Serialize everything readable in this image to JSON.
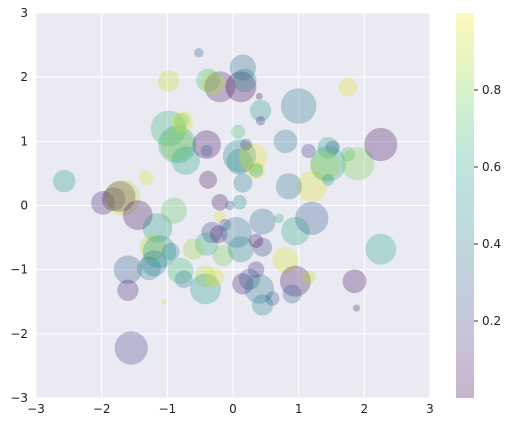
{
  "chart_data": {
    "type": "scatter",
    "title": "",
    "xlabel": "",
    "ylabel": "",
    "xlim": [
      -3,
      3
    ],
    "ylim": [
      -3,
      3
    ],
    "xticks": [
      "−3",
      "−2",
      "−1",
      "0",
      "1",
      "2",
      "3"
    ],
    "yticks": [
      "−3",
      "−2",
      "−1",
      "0",
      "1",
      "2",
      "3"
    ],
    "grid": true,
    "background": "#EAEAF2",
    "alpha": 0.3,
    "colormap": "viridis",
    "colorbar": {
      "range": [
        0,
        1
      ],
      "ticks": [
        "0.2",
        "0.4",
        "0.6",
        "0.8"
      ],
      "tick_values": [
        0.2,
        0.4,
        0.6,
        0.8
      ],
      "stops": [
        "#440154",
        "#482878",
        "#3e4a89",
        "#31688e",
        "#26828e",
        "#1f9e89",
        "#35b779",
        "#6ece58",
        "#b5de2b",
        "#fde725"
      ]
    },
    "points": [
      {
        "x": -2.57,
        "y": 0.38,
        "size": 0.19,
        "c": 0.55
      },
      {
        "x": -1.98,
        "y": 0.04,
        "size": 0.2,
        "c": 0.1
      },
      {
        "x": -1.82,
        "y": 0.1,
        "size": 0.2,
        "c": 0.1
      },
      {
        "x": -1.72,
        "y": 0.14,
        "size": 0.26,
        "c": 0.02
      },
      {
        "x": -1.68,
        "y": 0.12,
        "size": 0.3,
        "c": 0.9
      },
      {
        "x": -1.45,
        "y": -0.15,
        "size": 0.25,
        "c": 0.05
      },
      {
        "x": -1.32,
        "y": 0.43,
        "size": 0.12,
        "c": 0.95
      },
      {
        "x": -1.6,
        "y": -1.0,
        "size": 0.24,
        "c": 0.3
      },
      {
        "x": -1.6,
        "y": -1.32,
        "size": 0.18,
        "c": 0.1
      },
      {
        "x": -1.55,
        "y": -2.22,
        "size": 0.28,
        "c": 0.2
      },
      {
        "x": -1.15,
        "y": -0.35,
        "size": 0.25,
        "c": 0.55
      },
      {
        "x": -1.22,
        "y": -0.65,
        "size": 0.22,
        "c": 0.9
      },
      {
        "x": -1.12,
        "y": -0.72,
        "size": 0.28,
        "c": 0.55
      },
      {
        "x": -1.2,
        "y": -0.9,
        "size": 0.22,
        "c": 0.4
      },
      {
        "x": -1.28,
        "y": -0.98,
        "size": 0.2,
        "c": 0.45
      },
      {
        "x": -0.95,
        "y": -0.72,
        "size": 0.15,
        "c": 0.45
      },
      {
        "x": -0.8,
        "y": -1.02,
        "size": 0.22,
        "c": 0.7
      },
      {
        "x": -0.75,
        "y": -1.15,
        "size": 0.15,
        "c": 0.45
      },
      {
        "x": -0.9,
        "y": -0.08,
        "size": 0.22,
        "c": 0.75
      },
      {
        "x": -1.05,
        "y": -1.5,
        "size": 0.05,
        "c": 0.95
      },
      {
        "x": -0.98,
        "y": 1.2,
        "size": 0.3,
        "c": 0.65
      },
      {
        "x": -0.85,
        "y": 0.95,
        "size": 0.28,
        "c": 0.9
      },
      {
        "x": -0.85,
        "y": 0.95,
        "size": 0.32,
        "c": 0.6
      },
      {
        "x": -0.72,
        "y": 0.7,
        "size": 0.24,
        "c": 0.6
      },
      {
        "x": -0.77,
        "y": 1.3,
        "size": 0.18,
        "c": 0.95
      },
      {
        "x": -0.78,
        "y": 1.32,
        "size": 0.13,
        "c": 0.8
      },
      {
        "x": -0.98,
        "y": 1.94,
        "size": 0.18,
        "c": 0.9
      },
      {
        "x": -0.52,
        "y": 2.38,
        "size": 0.08,
        "c": 0.3
      },
      {
        "x": -0.38,
        "y": 1.95,
        "size": 0.2,
        "c": 0.7
      },
      {
        "x": -0.2,
        "y": 1.85,
        "size": 0.26,
        "c": 0.1
      },
      {
        "x": -0.3,
        "y": 1.9,
        "size": 0.2,
        "c": 0.9
      },
      {
        "x": -0.4,
        "y": 0.95,
        "size": 0.24,
        "c": 0.05
      },
      {
        "x": -0.4,
        "y": 0.85,
        "size": 0.1,
        "c": 0.3
      },
      {
        "x": -0.38,
        "y": 0.4,
        "size": 0.15,
        "c": 0.05
      },
      {
        "x": -0.32,
        "y": -0.42,
        "size": 0.18,
        "c": 0.2
      },
      {
        "x": -0.4,
        "y": -0.6,
        "size": 0.2,
        "c": 0.6
      },
      {
        "x": -0.6,
        "y": -0.68,
        "size": 0.18,
        "c": 0.85
      },
      {
        "x": -0.42,
        "y": -1.1,
        "size": 0.18,
        "c": 0.9
      },
      {
        "x": -0.42,
        "y": -1.3,
        "size": 0.26,
        "c": 0.55
      },
      {
        "x": -0.28,
        "y": -1.12,
        "size": 0.16,
        "c": 0.95
      },
      {
        "x": -0.2,
        "y": 0.05,
        "size": 0.14,
        "c": 0.05
      },
      {
        "x": -0.2,
        "y": -0.18,
        "size": 0.1,
        "c": 0.95
      },
      {
        "x": -0.12,
        "y": -0.3,
        "size": 0.1,
        "c": 0.25
      },
      {
        "x": -0.05,
        "y": 0.0,
        "size": 0.08,
        "c": 0.3
      },
      {
        "x": -0.22,
        "y": -0.45,
        "size": 0.15,
        "c": 0.1
      },
      {
        "x": -0.15,
        "y": -0.78,
        "size": 0.18,
        "c": 0.8
      },
      {
        "x": 0.05,
        "y": -0.42,
        "size": 0.26,
        "c": 0.4
      },
      {
        "x": 0.12,
        "y": -0.68,
        "size": 0.22,
        "c": 0.45
      },
      {
        "x": 0.1,
        "y": 0.05,
        "size": 0.12,
        "c": 0.5
      },
      {
        "x": 0.15,
        "y": 0.35,
        "size": 0.16,
        "c": 0.45
      },
      {
        "x": 0.08,
        "y": 1.15,
        "size": 0.12,
        "c": 0.7
      },
      {
        "x": 0.1,
        "y": 0.68,
        "size": 0.22,
        "c": 0.5
      },
      {
        "x": 0.1,
        "y": 0.77,
        "size": 0.28,
        "c": 0.45
      },
      {
        "x": 0.3,
        "y": 0.75,
        "size": 0.24,
        "c": 0.95
      },
      {
        "x": 0.35,
        "y": 0.55,
        "size": 0.15,
        "c": 0.95
      },
      {
        "x": 0.35,
        "y": 0.55,
        "size": 0.12,
        "c": 0.6
      },
      {
        "x": 0.2,
        "y": 0.95,
        "size": 0.1,
        "c": 0.2
      },
      {
        "x": 0.12,
        "y": 1.85,
        "size": 0.26,
        "c": 0.0
      },
      {
        "x": 0.18,
        "y": 1.95,
        "size": 0.2,
        "c": 0.5
      },
      {
        "x": 0.15,
        "y": 2.15,
        "size": 0.22,
        "c": 0.35
      },
      {
        "x": 0.4,
        "y": 1.7,
        "size": 0.06,
        "c": 0.05
      },
      {
        "x": 0.42,
        "y": 1.48,
        "size": 0.18,
        "c": 0.55
      },
      {
        "x": 0.42,
        "y": 1.32,
        "size": 0.08,
        "c": 0.1
      },
      {
        "x": 0.45,
        "y": -0.25,
        "size": 0.22,
        "c": 0.35
      },
      {
        "x": 0.45,
        "y": -0.65,
        "size": 0.16,
        "c": 0.2
      },
      {
        "x": 0.35,
        "y": -0.55,
        "size": 0.12,
        "c": 0.05
      },
      {
        "x": 0.35,
        "y": -1.0,
        "size": 0.14,
        "c": 0.1
      },
      {
        "x": 0.25,
        "y": -1.15,
        "size": 0.18,
        "c": 0.3
      },
      {
        "x": 0.15,
        "y": -1.22,
        "size": 0.18,
        "c": 0.1
      },
      {
        "x": 0.4,
        "y": -1.3,
        "size": 0.25,
        "c": 0.4
      },
      {
        "x": 0.45,
        "y": -1.55,
        "size": 0.18,
        "c": 0.45
      },
      {
        "x": 0.6,
        "y": -1.45,
        "size": 0.12,
        "c": 0.25
      },
      {
        "x": 0.8,
        "y": -0.85,
        "size": 0.22,
        "c": 0.95
      },
      {
        "x": 0.95,
        "y": -1.18,
        "size": 0.26,
        "c": 0.05
      },
      {
        "x": 0.9,
        "y": -1.38,
        "size": 0.16,
        "c": 0.3
      },
      {
        "x": 1.15,
        "y": -1.12,
        "size": 0.12,
        "c": 0.9
      },
      {
        "x": 0.95,
        "y": -0.4,
        "size": 0.24,
        "c": 0.6
      },
      {
        "x": 1.2,
        "y": -0.2,
        "size": 0.28,
        "c": 0.3
      },
      {
        "x": 1.2,
        "y": 0.3,
        "size": 0.26,
        "c": 0.95
      },
      {
        "x": 0.85,
        "y": 0.3,
        "size": 0.22,
        "c": 0.4
      },
      {
        "x": 1.15,
        "y": 0.85,
        "size": 0.12,
        "c": 0.15
      },
      {
        "x": 0.8,
        "y": 1.0,
        "size": 0.2,
        "c": 0.4
      },
      {
        "x": 1.0,
        "y": 1.55,
        "size": 0.3,
        "c": 0.4
      },
      {
        "x": 0.7,
        "y": -0.2,
        "size": 0.08,
        "c": 0.6
      },
      {
        "x": 1.45,
        "y": 0.9,
        "size": 0.18,
        "c": 0.55
      },
      {
        "x": 1.52,
        "y": 0.9,
        "size": 0.12,
        "c": 0.3
      },
      {
        "x": 1.45,
        "y": 0.65,
        "size": 0.3,
        "c": 0.6
      },
      {
        "x": 1.4,
        "y": 0.62,
        "size": 0.25,
        "c": 0.85
      },
      {
        "x": 1.45,
        "y": 0.4,
        "size": 0.1,
        "c": 0.55
      },
      {
        "x": 1.75,
        "y": 0.8,
        "size": 0.12,
        "c": 0.7
      },
      {
        "x": 1.9,
        "y": 0.65,
        "size": 0.28,
        "c": 0.8
      },
      {
        "x": 1.75,
        "y": 1.85,
        "size": 0.16,
        "c": 0.95
      },
      {
        "x": 2.25,
        "y": 0.95,
        "size": 0.28,
        "c": 0.05
      },
      {
        "x": 1.85,
        "y": -1.18,
        "size": 0.2,
        "c": 0.05
      },
      {
        "x": 1.88,
        "y": -1.6,
        "size": 0.06,
        "c": 0.1
      },
      {
        "x": 2.25,
        "y": -0.68,
        "size": 0.26,
        "c": 0.6
      }
    ]
  }
}
